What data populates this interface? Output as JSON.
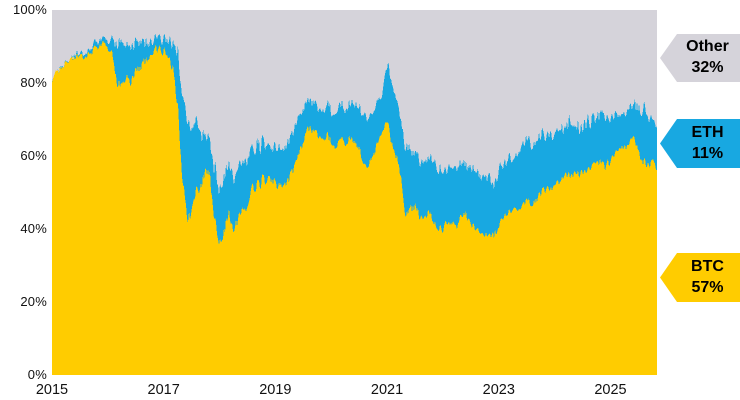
{
  "chart_data": {
    "type": "area",
    "stacked": true,
    "unit": "percent market dominance",
    "x_start": "2015-01",
    "x_end": "2025-11",
    "x_interval": "monthly",
    "ylim": [
      0,
      100
    ],
    "grid": false,
    "legend_position": "right-edge arrow tags",
    "x_tick_labels": [
      "2015",
      "2017",
      "2019",
      "2021",
      "2023",
      "2025"
    ],
    "y_tick_labels": [
      "0%",
      "20%",
      "40%",
      "60%",
      "80%",
      "100%"
    ],
    "series": [
      {
        "name": "BTC",
        "color": "#FFCC00",
        "final_value": 57,
        "values": [
          81,
          83,
          84,
          86,
          87,
          87,
          88,
          87,
          88,
          89,
          90,
          91,
          90,
          88,
          80,
          79,
          82,
          80,
          83,
          84,
          86,
          87.5,
          89,
          89.5,
          88.5,
          87,
          84,
          74,
          55,
          42,
          45,
          50,
          52,
          57,
          54,
          42,
          35,
          40,
          44,
          41,
          43,
          45,
          47,
          51,
          52,
          53,
          53.5,
          54,
          52.5,
          51.5,
          52,
          54,
          56.5,
          60,
          64,
          67,
          67.5,
          65.5,
          64.5,
          65.5,
          64,
          62,
          64.5,
          63.5,
          65,
          64,
          62,
          58.5,
          57.5,
          60,
          63,
          65.5,
          70,
          63,
          60,
          54,
          43,
          45.5,
          46,
          44,
          42.5,
          45,
          42,
          40,
          40,
          42,
          42,
          41,
          44,
          44,
          41,
          39.5,
          39.5,
          39,
          38,
          38.5,
          41,
          43,
          45,
          46,
          45.5,
          46.5,
          47.5,
          47.5,
          48,
          49.5,
          51,
          51.5,
          52,
          53,
          54.5,
          55,
          54.5,
          55,
          55,
          56,
          57,
          58,
          58,
          57,
          59,
          60,
          61.5,
          62.5,
          63,
          64.5,
          61,
          58.5,
          57.5,
          58.5,
          57
        ]
      },
      {
        "name": "ETH",
        "color": "#18A8E1",
        "final_value": 11,
        "values": [
          0,
          0,
          0,
          0,
          0,
          0.5,
          0.5,
          1,
          1,
          1.5,
          1.5,
          1.5,
          2,
          4,
          11,
          12,
          9,
          10,
          7.5,
          7,
          5,
          4,
          3,
          3,
          3.5,
          4.5,
          7,
          14,
          22,
          27,
          23,
          18,
          15,
          9,
          10,
          14,
          14.5,
          14.5,
          14,
          14.5,
          14,
          13,
          12.5,
          11,
          10.5,
          10,
          9.5,
          9,
          9.5,
          10,
          10,
          10.5,
          10.5,
          10,
          9,
          8,
          7.5,
          8,
          8,
          8,
          8.5,
          9.5,
          9.5,
          9.5,
          9.5,
          10,
          11,
          13,
          13,
          12,
          11,
          10.5,
          15,
          16,
          15,
          15.5,
          19,
          16.5,
          15,
          15.5,
          15.5,
          14.5,
          16,
          17,
          16,
          14.5,
          15,
          15,
          14,
          13,
          15,
          16,
          15.5,
          15.5,
          15.5,
          14.5,
          15.5,
          15,
          14.5,
          14.5,
          15,
          16,
          17,
          16.5,
          16,
          15.5,
          15,
          14.5,
          14,
          14.5,
          13,
          12.5,
          13.5,
          13,
          12.5,
          13,
          12.5,
          12,
          13,
          12.5,
          11,
          10.5,
          9.5,
          8.5,
          9,
          8.5,
          11.5,
          13.5,
          13,
          11.5,
          11
        ]
      },
      {
        "name": "Other",
        "color": "#D5D3DA",
        "final_value": 32,
        "values": "remainder to 100 (100 - BTC - ETH)"
      }
    ]
  },
  "tags": {
    "other": {
      "title": "Other",
      "value": "32%",
      "color": "#D5D3DA"
    },
    "eth": {
      "title": "ETH",
      "value": "11%",
      "color": "#18A8E1"
    },
    "btc": {
      "title": "BTC",
      "value": "57%",
      "color": "#FFCC00"
    }
  },
  "colors": {
    "background": "#FFFFFF",
    "text": "#000000",
    "btc": "#FFCC00",
    "eth": "#18A8E1",
    "other": "#D5D3DA"
  }
}
